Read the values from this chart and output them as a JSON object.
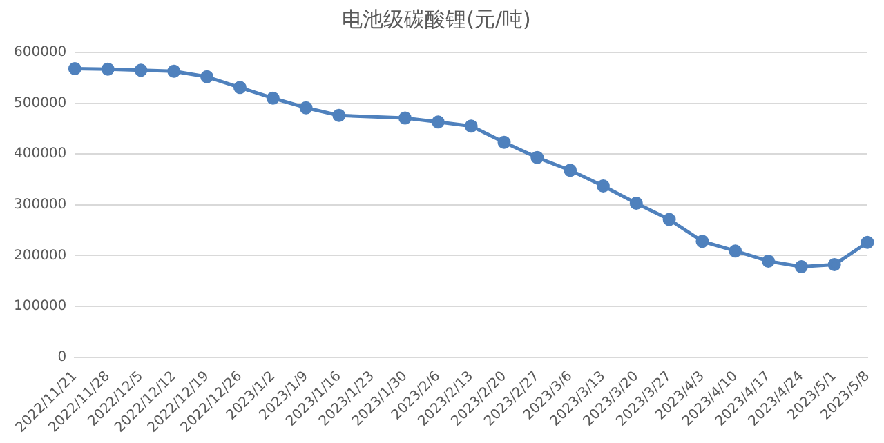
{
  "chart_data": {
    "type": "line",
    "title": "电池级碳酸锂(元/吨)",
    "categories": [
      "2022/11/21",
      "2022/11/28",
      "2022/12/5",
      "2022/12/12",
      "2022/12/19",
      "2022/12/26",
      "2023/1/2",
      "2023/1/9",
      "2023/1/16",
      "2023/1/23",
      "2023/1/30",
      "2023/2/6",
      "2023/2/13",
      "2023/2/20",
      "2023/2/27",
      "2023/3/6",
      "2023/3/13",
      "2023/3/20",
      "2023/3/27",
      "2023/4/3",
      "2023/4/10",
      "2023/4/17",
      "2023/4/24",
      "2023/5/1",
      "2023/5/8"
    ],
    "series": [
      {
        "color": "#4f81bd",
        "values": [
          568000,
          567000,
          565000,
          563000,
          552000,
          531000,
          510000,
          491000,
          476000,
          null,
          471000,
          463000,
          455000,
          423000,
          393000,
          368000,
          337000,
          303000,
          271000,
          228000,
          209000,
          189000,
          178000,
          182000,
          226000
        ]
      }
    ],
    "ylim": [
      0,
      600000
    ],
    "yticks": [
      0,
      100000,
      200000,
      300000,
      400000,
      500000,
      600000
    ],
    "grid": "y",
    "legend": false,
    "marker": "circle",
    "line_style": "solid"
  }
}
